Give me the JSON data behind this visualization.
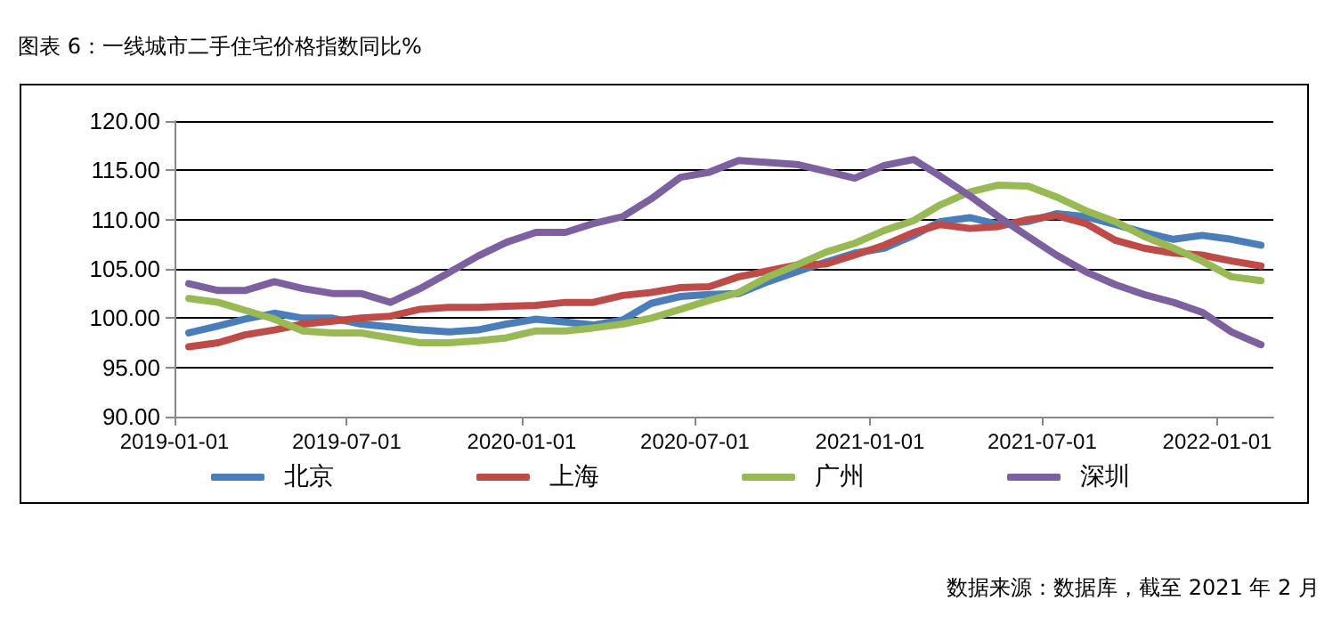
{
  "chart_data": {
    "type": "line",
    "title": "图表 6：一线城市二手住宅价格指数同比%",
    "annotations": [
      "数据来源：数据库，截至 2021 年 2 月"
    ],
    "x": [
      "2019-01-16",
      "2019-02-16",
      "2019-03-16",
      "2019-04-16",
      "2019-05-16",
      "2019-06-16",
      "2019-07-16",
      "2019-08-16",
      "2019-09-16",
      "2019-10-16",
      "2019-11-16",
      "2019-12-16",
      "2020-01-16",
      "2020-02-16",
      "2020-03-16",
      "2020-04-16",
      "2020-05-16",
      "2020-06-16",
      "2020-07-16",
      "2020-08-16",
      "2020-09-16",
      "2020-10-16",
      "2020-11-16",
      "2020-12-16",
      "2021-01-16",
      "2021-02-16",
      "2021-03-16",
      "2021-04-16",
      "2021-05-16",
      "2021-06-16",
      "2021-07-16",
      "2021-08-16",
      "2021-09-16",
      "2021-10-16",
      "2021-11-16",
      "2021-12-16",
      "2022-01-16",
      "2022-02-16"
    ],
    "series": [
      {
        "name": "北京",
        "color": "#4a7ebb",
        "values": [
          98.5,
          99.2,
          99.9,
          100.5,
          100.0,
          100.0,
          99.4,
          99.1,
          98.8,
          98.6,
          98.8,
          99.4,
          99.9,
          99.6,
          99.3,
          99.8,
          101.5,
          102.2,
          102.4,
          102.5,
          103.7,
          104.7,
          105.7,
          106.6,
          107.1,
          108.4,
          109.8,
          110.2,
          109.5,
          109.8,
          110.6,
          110.3,
          109.5,
          108.7,
          108.0,
          108.4,
          108.0,
          107.4
        ]
      },
      {
        "name": "上海",
        "color": "#be4b48",
        "values": [
          97.1,
          97.5,
          98.3,
          98.8,
          99.4,
          99.7,
          100.0,
          100.2,
          100.9,
          101.1,
          101.1,
          101.2,
          101.3,
          101.6,
          101.6,
          102.3,
          102.6,
          103.1,
          103.2,
          104.2,
          104.8,
          105.4,
          105.5,
          106.4,
          107.4,
          108.7,
          109.5,
          109.1,
          109.3,
          110.0,
          110.4,
          109.6,
          107.9,
          107.1,
          106.6,
          106.4,
          105.8,
          105.3
        ]
      },
      {
        "name": "广州",
        "color": "#98b954",
        "values": [
          102.0,
          101.6,
          100.8,
          99.9,
          98.7,
          98.5,
          98.5,
          98.0,
          97.5,
          97.5,
          97.7,
          98.0,
          98.7,
          98.7,
          99.0,
          99.4,
          100.0,
          100.9,
          101.8,
          102.6,
          104.2,
          105.4,
          106.7,
          107.6,
          108.9,
          109.9,
          111.5,
          112.8,
          113.5,
          113.4,
          112.3,
          110.9,
          109.8,
          108.3,
          107.1,
          105.8,
          104.2,
          103.8
        ]
      },
      {
        "name": "深圳",
        "color": "#7d60a0",
        "values": [
          103.5,
          102.8,
          102.8,
          103.7,
          103.0,
          102.5,
          102.5,
          101.6,
          103.0,
          104.6,
          106.3,
          107.7,
          108.7,
          108.7,
          109.6,
          110.3,
          112.1,
          114.3,
          114.8,
          116.0,
          115.8,
          115.6,
          114.9,
          114.2,
          115.5,
          116.1,
          114.4,
          112.4,
          110.3,
          108.3,
          106.4,
          104.7,
          103.4,
          102.4,
          101.6,
          100.6,
          98.6,
          97.3
        ]
      }
    ],
    "xlim": [
      "2019-01-01",
      "2022-03-01"
    ],
    "xticks": [
      "2019-01-01",
      "2019-07-01",
      "2020-01-01",
      "2020-07-01",
      "2021-01-01",
      "2021-07-01",
      "2022-01-01"
    ],
    "ylim": [
      90,
      120
    ],
    "yticks": [
      {
        "value": 90,
        "label": "90.00"
      },
      {
        "value": 95,
        "label": "95.00"
      },
      {
        "value": 100,
        "label": "100.00"
      },
      {
        "value": 105,
        "label": "105.00"
      },
      {
        "value": 110,
        "label": "110.00"
      },
      {
        "value": 115,
        "label": "115.00"
      },
      {
        "value": 120,
        "label": "120.00"
      }
    ],
    "grid": "y",
    "legend": "bottom",
    "marker": "none",
    "line_style": "solid"
  }
}
